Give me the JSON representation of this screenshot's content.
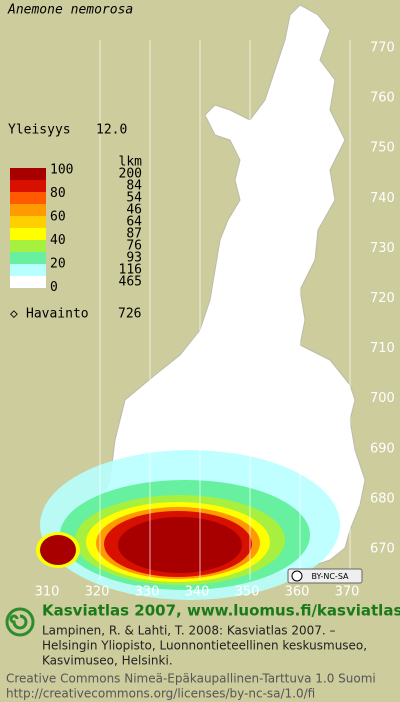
{
  "title": "Anemone nemorosa",
  "frequency": {
    "label": "Yleisyys",
    "value": "12.0"
  },
  "legend": {
    "percent_labels": [
      "100",
      "80",
      "60",
      "40",
      "20",
      "0"
    ],
    "count_header": "lkm",
    "counts": [
      "200",
      "84",
      "54",
      "46",
      "64",
      "87",
      "76",
      "93",
      "116",
      "465"
    ],
    "colors": [
      "#a80000",
      "#d81000",
      "#ff5a00",
      "#ff9a00",
      "#ffd000",
      "#ffff00",
      "#a8f040",
      "#66f0a0",
      "#b8ffff",
      "#ffffff"
    ]
  },
  "observations": {
    "label": "Havainto",
    "value": "726"
  },
  "y_axis_labels": [
    "770",
    "760",
    "750",
    "740",
    "730",
    "720",
    "710",
    "700",
    "690",
    "680",
    "670"
  ],
  "x_axis_labels": [
    "310",
    "320",
    "330",
    "340",
    "350",
    "360",
    "370"
  ],
  "license_badge": "BY-NC-SA",
  "footer": {
    "heading": "Kasviatlas 2007, www.luomus.fi/kasviatlas",
    "citation": [
      "Lampinen, R. & Lahti, T. 2008: Kasviatlas 2007. –",
      "Helsingin Yliopisto, Luonnontieteellinen keskusmuseo,",
      "Kasvimuseo, Helsinki."
    ],
    "license": "Creative Commons Nimeä-Epäkaupallinen-Tarttuva 1.0 Suomi",
    "url": "http://creativecommons.org/licenses/by-nc-sa/1.0/fi"
  }
}
